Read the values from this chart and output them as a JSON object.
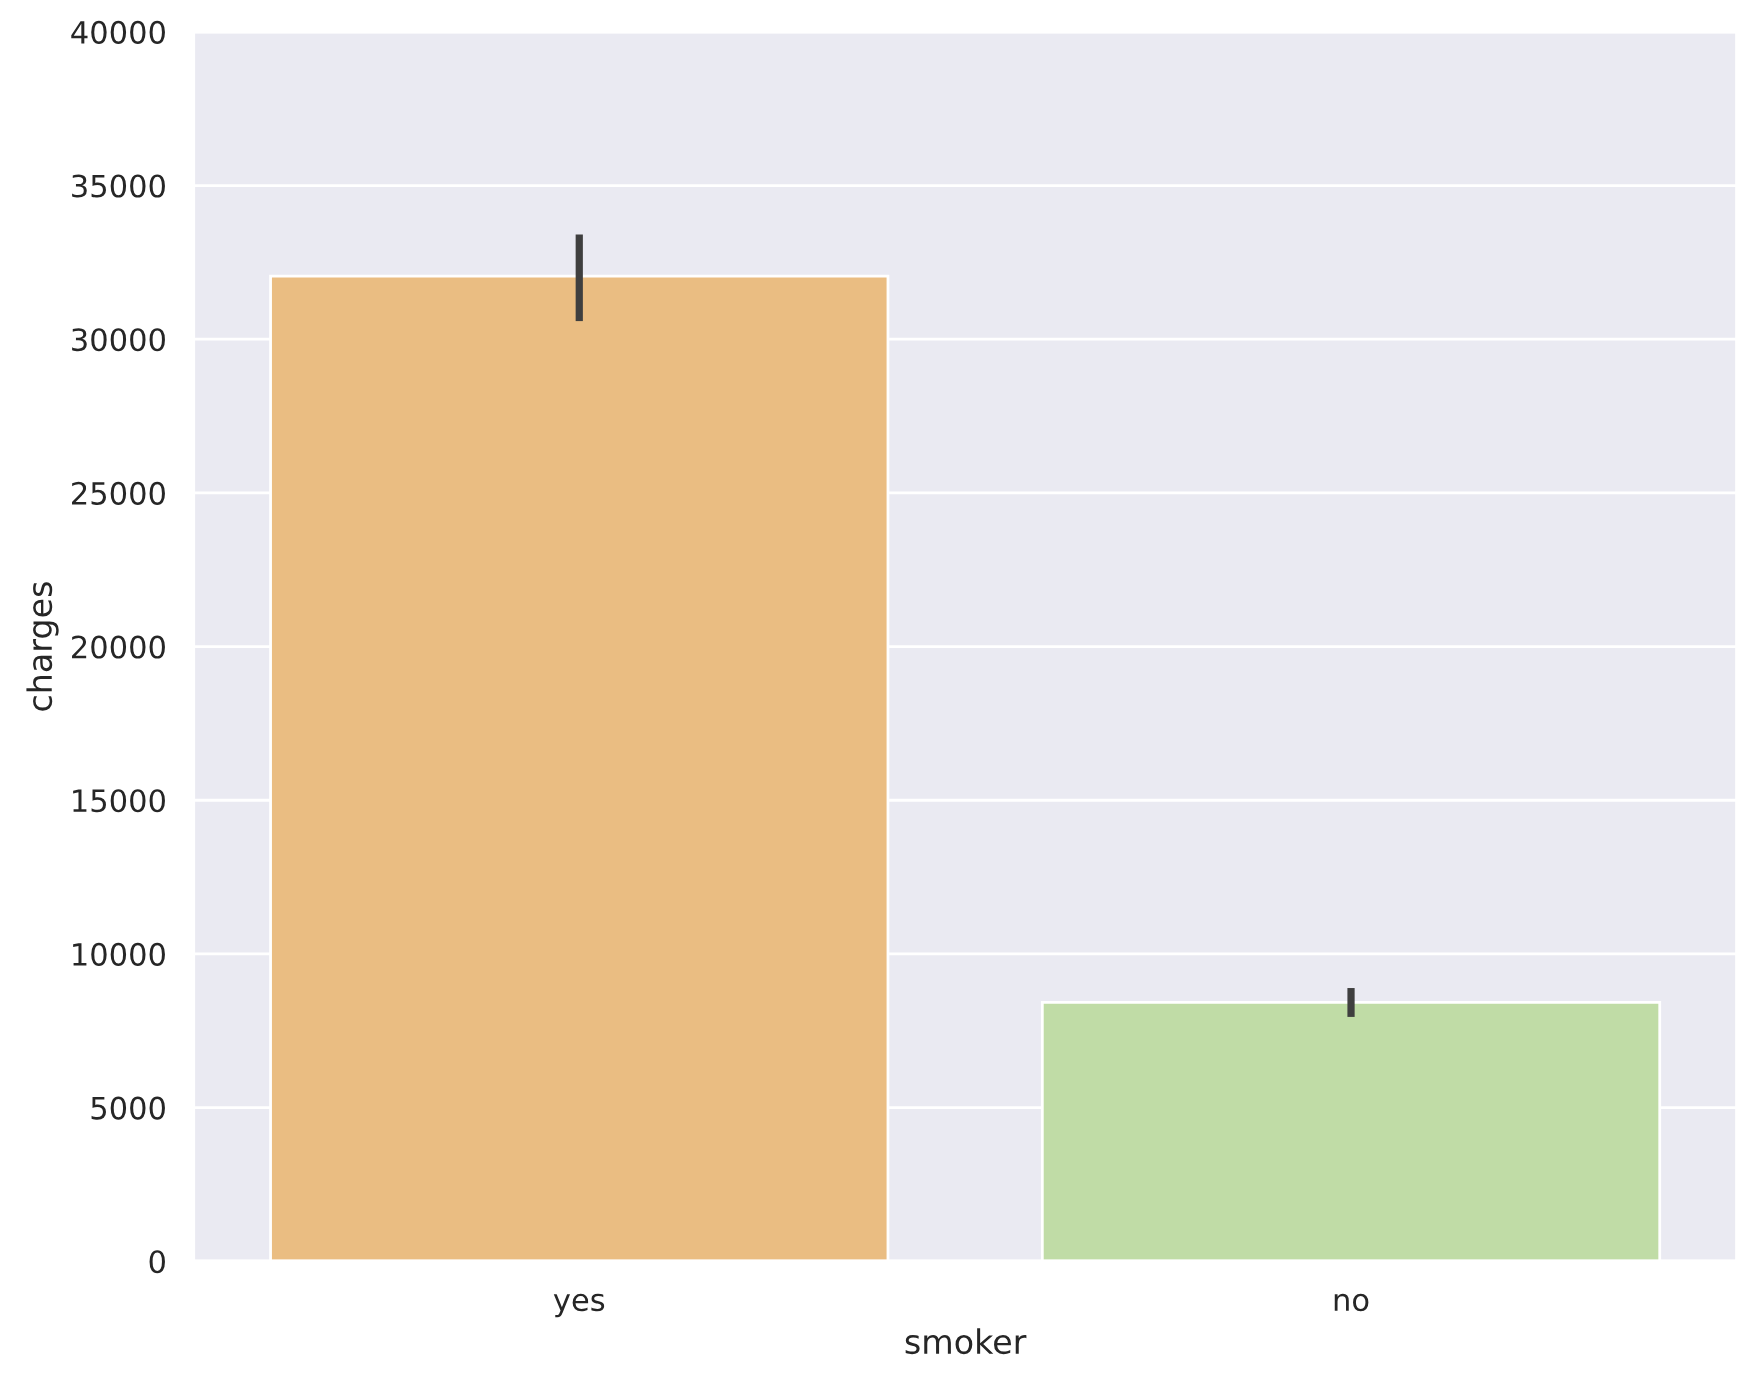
{
  "chart_data": {
    "type": "bar",
    "xlabel": "smoker",
    "ylabel": "charges",
    "categories": [
      "yes",
      "no"
    ],
    "values": [
      32050,
      8420
    ],
    "colors": [
      "#eabd82",
      "#c0dca6"
    ],
    "errors": [
      [
        30590,
        33410
      ],
      [
        7950,
        8890
      ]
    ],
    "ylim": [
      0,
      40000
    ],
    "yticks": [
      0,
      5000,
      10000,
      15000,
      20000,
      25000,
      30000,
      35000,
      40000
    ],
    "grid": "y"
  }
}
